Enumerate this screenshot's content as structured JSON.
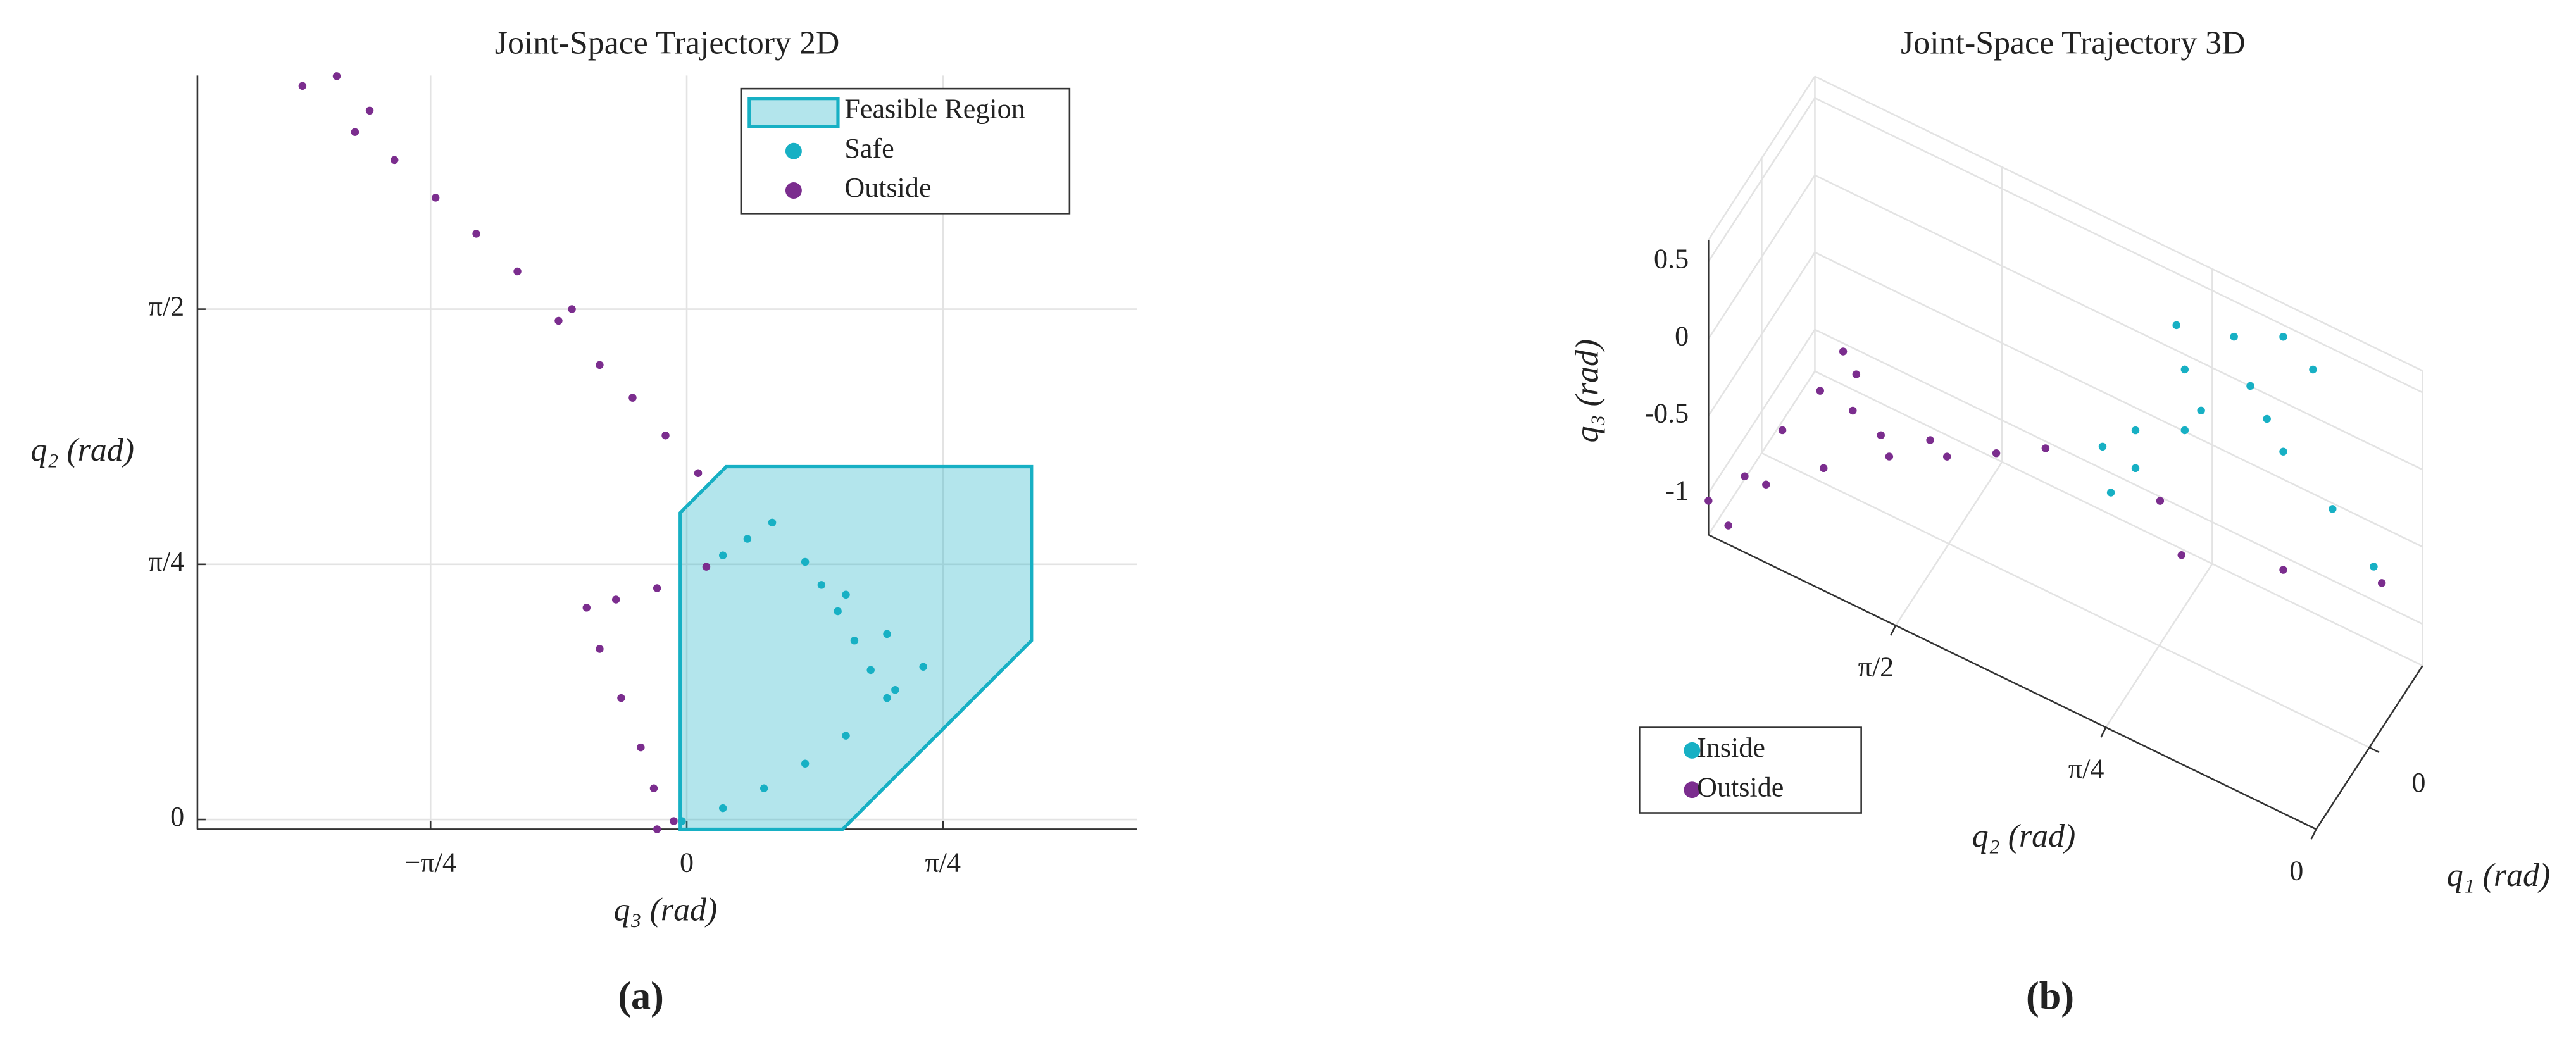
{
  "chart_data": [
    {
      "type": "scatter",
      "title": "Joint-Space Trajectory 2D",
      "xlabel": "q₃ (rad)",
      "ylabel": "q₂ (rad)",
      "caption": "(a)",
      "xlim": [
        -1.5,
        1.38
      ],
      "ylim": [
        -0.03,
        2.29
      ],
      "xticks": [
        {
          "value": -0.7854,
          "label": "−π/4"
        },
        0,
        {
          "value": 0.7854,
          "label": "π/4"
        }
      ],
      "yticks": [
        0,
        {
          "value": 0.7854,
          "label": "π/4"
        },
        {
          "value": 1.5708,
          "label": "π/2"
        }
      ],
      "grid": true,
      "legend": "upper right",
      "region": {
        "name": "Feasible Region",
        "color": "#17b0c4",
        "x": [
          -0.02,
          0.121,
          1.057,
          1.057,
          0.478,
          -0.02
        ],
        "y": [
          0.944,
          1.086,
          1.086,
          0.551,
          -0.03,
          -0.03
        ]
      },
      "series": [
        {
          "name": "Safe",
          "color": "#17b0c4",
          "x": [
            0.111,
            0.186,
            0.262,
            0.363,
            0.413,
            0.463,
            0.514,
            0.564,
            0.614,
            0.725,
            0.614,
            0.488,
            -0.015,
            0.111,
            0.237,
            0.363,
            0.488,
            0.639
          ],
          "y": [
            0.813,
            0.864,
            0.914,
            0.793,
            0.722,
            0.641,
            0.551,
            0.46,
            0.374,
            0.47,
            0.571,
            0.692,
            -0.005,
            0.035,
            0.096,
            0.172,
            0.258,
            0.399
          ]
        },
        {
          "name": "Outside",
          "color": "#7b2d8e",
          "x": [
            -1.178,
            -1.073,
            -0.972,
            -1.017,
            -0.896,
            -0.77,
            -0.645,
            -0.519,
            -0.393,
            -0.352,
            -0.267,
            -0.166,
            -0.065,
            0.035,
            0.06,
            -0.091,
            -0.217,
            -0.307,
            -0.267,
            -0.201,
            -0.141,
            -0.101,
            -0.091,
            -0.04
          ],
          "y": [
            2.258,
            2.288,
            2.182,
            2.116,
            2.03,
            1.914,
            1.803,
            1.687,
            1.535,
            1.571,
            1.399,
            1.298,
            1.182,
            1.066,
            0.778,
            0.712,
            0.677,
            0.652,
            0.525,
            0.374,
            0.222,
            0.096,
            -0.03,
            -0.005
          ]
        }
      ]
    },
    {
      "type": "scatter3d",
      "title": "Joint-Space Trajectory 3D",
      "xlabel": "q₁ (rad)",
      "ylabel": "q₂ (rad)",
      "zlabel": "q₃ (rad)",
      "caption": "(b)",
      "xlim": [
        -0.6,
        0.6
      ],
      "ylim": [
        0,
        2.27
      ],
      "zlim": [
        -1.27,
        0.64
      ],
      "xticks": [
        0
      ],
      "yticks": [
        0,
        {
          "value": 0.7854,
          "label": "π/4"
        },
        {
          "value": 1.5708,
          "label": "π/2"
        }
      ],
      "zticks": [
        0.5,
        0,
        -0.5,
        -1
      ],
      "grid": true,
      "legend": "lower left",
      "series": [
        {
          "name": "Inside",
          "color": "#17b0c4",
          "x": [
            0.3,
            0.3,
            0.3,
            0.3,
            0.3,
            0.3,
            0.3,
            0.3,
            0.3,
            0.3,
            0.3,
            0.3,
            0.3,
            0.3,
            0.3,
            0.3
          ],
          "y": [
            1.096,
            0.973,
            0.789,
            0.82,
            0.605,
            0.421,
            0.31,
            0.482,
            0.421,
            0.237,
            0.083,
            1.065,
            0.973,
            0.728,
            0.544,
            0.789
          ],
          "z": [
            -0.507,
            -0.298,
            0.251,
            0.512,
            0.618,
            0.772,
            0.653,
            0.189,
            0.028,
            -0.189,
            -0.433,
            -0.779,
            -0.543,
            0.036,
            0.35,
            -0.143
          ]
        },
        {
          "name": "Outside",
          "color": "#7b2d8e",
          "x": [
            -0.5,
            -0.5,
            -0.5,
            -0.5,
            -0.5,
            -0.5,
            -0.5,
            -0.5,
            -0.5,
            -0.5,
            -0.5,
            -0.5,
            -0.5,
            -0.5,
            -0.5,
            -0.5,
            0.3,
            0.3,
            0.3,
            0.3
          ],
          "y": [
            2.303,
            2.229,
            2.168,
            2.027,
            1.886,
            1.8,
            1.751,
            1.764,
            1.659,
            1.475,
            1.412,
            1.228,
            1.044,
            2.088,
            1.873,
            1.628,
            0.881,
            0.801,
            0.421,
            0.053
          ],
          "z": [
            -1.166,
            -1.264,
            -0.894,
            -0.477,
            -0.103,
            0.224,
            0.117,
            -0.129,
            -0.2,
            -0.077,
            -0.131,
            0.046,
            0.232,
            -0.88,
            -0.593,
            -0.312,
            -0.678,
            -0.962,
            -0.738,
            -0.514
          ]
        }
      ]
    }
  ]
}
